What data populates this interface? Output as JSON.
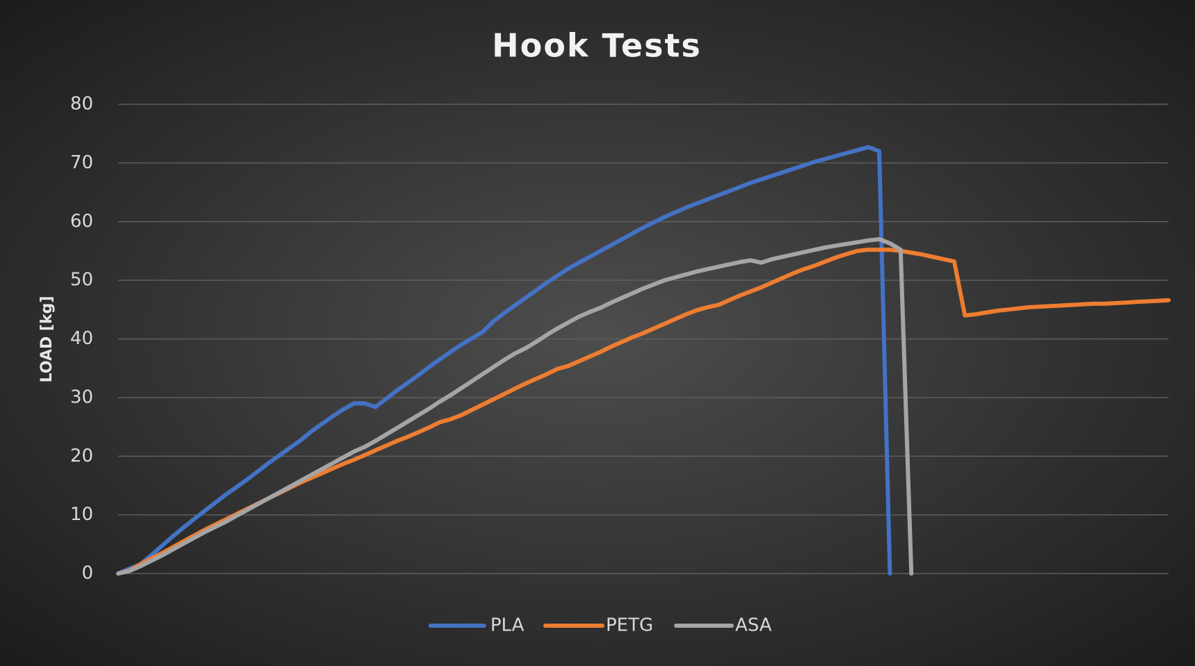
{
  "chart_data": {
    "type": "line",
    "title": "Hook Tests",
    "y_label": "LOAD [kg]",
    "categories": [
      null,
      null,
      null,
      null,
      null,
      null,
      null,
      null,
      null,
      null,
      null,
      null,
      null,
      null,
      null,
      null,
      null,
      null,
      null,
      null,
      null,
      null,
      null,
      null,
      null,
      null,
      null,
      null,
      null,
      null,
      null,
      null,
      null,
      null,
      null,
      null,
      null,
      null,
      null,
      null,
      null,
      null,
      null,
      null,
      null,
      null,
      null,
      null,
      null,
      null,
      null,
      null,
      null,
      null,
      null,
      null,
      null,
      null,
      null,
      null,
      null,
      null,
      null,
      null,
      null,
      null,
      null,
      null,
      null,
      null,
      null,
      null,
      null,
      null,
      null,
      null,
      null,
      null,
      null,
      null,
      null,
      null,
      null,
      null,
      null,
      null,
      null,
      null,
      null,
      null,
      null,
      null,
      null,
      null,
      null,
      null,
      null,
      null,
      null
    ],
    "ylim": [
      0,
      80
    ],
    "yticks": [
      0,
      10,
      20,
      30,
      40,
      50,
      60,
      70,
      80
    ],
    "grid": true,
    "legend": "bottom",
    "series": [
      {
        "name": "PLA",
        "color": "#4472c4",
        "values": [
          0,
          0.8,
          1.5,
          3,
          4.6,
          6.2,
          7.7,
          9.2,
          10.6,
          12.0,
          13.4,
          14.7,
          16.0,
          17.4,
          18.8,
          20.1,
          21.4,
          22.7,
          24.2,
          25.5,
          26.8,
          28.0,
          29.0,
          29.0,
          28.4,
          29.8,
          31.2,
          32.5,
          33.8,
          35.2,
          36.5,
          37.8,
          39.0,
          40.1,
          41.2,
          43.0,
          44.4,
          45.7,
          47.0,
          48.3,
          49.6,
          50.8,
          52.0,
          53.0,
          54.0,
          55.0,
          56.0,
          57.0,
          58.0,
          59.0,
          59.9,
          60.8,
          61.6,
          62.4,
          63.1,
          63.8,
          64.5,
          65.2,
          65.9,
          66.6,
          67.2,
          67.8,
          68.4,
          69.0,
          69.6,
          70.2,
          70.7,
          71.2,
          71.7,
          72.2,
          72.7,
          72.0,
          0,
          null,
          null,
          null,
          null,
          null,
          null,
          null,
          null,
          null,
          null,
          null,
          null,
          null,
          null,
          null,
          null,
          null,
          null,
          null,
          null,
          null,
          null,
          null,
          null,
          null,
          null
        ]
      },
      {
        "name": "PETG",
        "color": "#ed7d31",
        "values": [
          0,
          0.5,
          1.5,
          2.5,
          3.4,
          4.4,
          5.4,
          6.4,
          7.4,
          8.3,
          9.2,
          10.1,
          11.0,
          11.9,
          12.8,
          13.7,
          14.6,
          15.5,
          16.3,
          17.1,
          17.9,
          18.7,
          19.4,
          20.2,
          21.0,
          21.8,
          22.6,
          23.3,
          24.1,
          24.9,
          25.8,
          26.3,
          27.0,
          27.9,
          28.8,
          29.7,
          30.6,
          31.5,
          32.4,
          33.2,
          34.0,
          34.9,
          35.4,
          36.2,
          37.0,
          37.8,
          38.7,
          39.5,
          40.3,
          41.0,
          41.8,
          42.6,
          43.4,
          44.2,
          44.9,
          45.4,
          45.8,
          46.6,
          47.4,
          48.1,
          48.8,
          49.6,
          50.4,
          51.2,
          51.9,
          52.5,
          53.2,
          53.9,
          54.5,
          55.0,
          55.2,
          55.2,
          55.2,
          55.0,
          54.7,
          54.4,
          54.0,
          53.6,
          53.2,
          44.0,
          44.2,
          44.5,
          44.8,
          45.0,
          45.2,
          45.4,
          45.5,
          45.6,
          45.7,
          45.8,
          45.9,
          46.0,
          46.0,
          46.1,
          46.2,
          46.3,
          46.4,
          46.5,
          46.6
        ]
      },
      {
        "name": "ASA",
        "color": "#a5a5a5",
        "values": [
          0,
          0.4,
          1.2,
          2.1,
          3.0,
          4.0,
          5.0,
          6.0,
          7.0,
          7.9,
          8.8,
          9.8,
          10.8,
          11.8,
          12.8,
          13.8,
          14.8,
          15.8,
          16.8,
          17.8,
          18.8,
          19.8,
          20.8,
          21.6,
          22.6,
          23.7,
          24.8,
          25.9,
          27.0,
          28.1,
          29.3,
          30.4,
          31.6,
          32.8,
          34.0,
          35.2,
          36.4,
          37.5,
          38.4,
          39.5,
          40.7,
          41.8,
          42.8,
          43.8,
          44.6,
          45.3,
          46.2,
          47.0,
          47.8,
          48.6,
          49.3,
          50.0,
          50.5,
          51.0,
          51.5,
          51.9,
          52.3,
          52.7,
          53.1,
          53.4,
          53.0,
          53.6,
          54.0,
          54.4,
          54.8,
          55.2,
          55.6,
          55.9,
          56.2,
          56.5,
          56.8,
          57.0,
          56.3,
          55.2,
          0,
          null,
          null,
          null,
          null,
          null,
          null,
          null,
          null,
          null,
          null,
          null,
          null,
          null,
          null,
          null,
          null,
          null,
          null,
          null,
          null,
          null,
          null,
          null,
          null
        ]
      }
    ]
  }
}
